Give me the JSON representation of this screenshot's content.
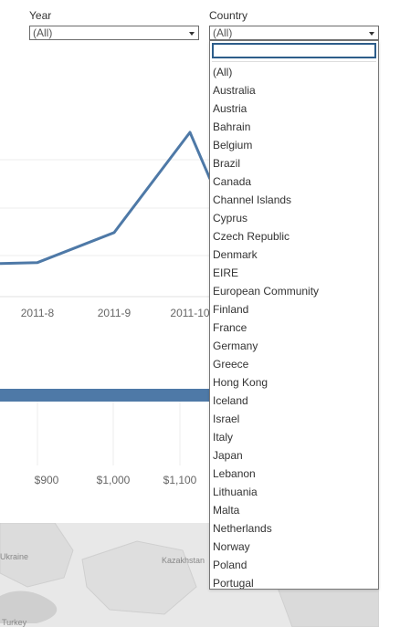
{
  "filters": {
    "year": {
      "label": "Year",
      "value": "(All)"
    },
    "country": {
      "label": "Country",
      "value": "(All)",
      "search_value": ""
    }
  },
  "dropdown": {
    "options": [
      "(All)",
      "Australia",
      "Austria",
      "Bahrain",
      "Belgium",
      "Brazil",
      "Canada",
      "Channel Islands",
      "Cyprus",
      "Czech Republic",
      "Denmark",
      "EIRE",
      "European Community",
      "Finland",
      "France",
      "Germany",
      "Greece",
      "Hong Kong",
      "Iceland",
      "Israel",
      "Italy",
      "Japan",
      "Lebanon",
      "Lithuania",
      "Malta",
      "Netherlands",
      "Norway",
      "Poland",
      "Portugal"
    ]
  },
  "chart_data": [
    {
      "type": "line",
      "categories": [
        "2011-8",
        "2011-9",
        "2011-10"
      ],
      "x_tick_labels": [
        "2011-8",
        "2011-9",
        "2011-10"
      ],
      "series": [
        {
          "values": [
            0.22,
            0.4,
            1.0
          ]
        }
      ],
      "color": "#4e79a7",
      "grid": true
    },
    {
      "type": "bar",
      "orientation": "horizontal",
      "x_tick_labels": [
        "$900",
        "$1,000",
        "$1,100"
      ],
      "color": "#4e79a7",
      "grid": true
    }
  ],
  "map": {
    "labels": [
      "Ukraine",
      "Kazakhstan",
      "Turkey"
    ]
  }
}
